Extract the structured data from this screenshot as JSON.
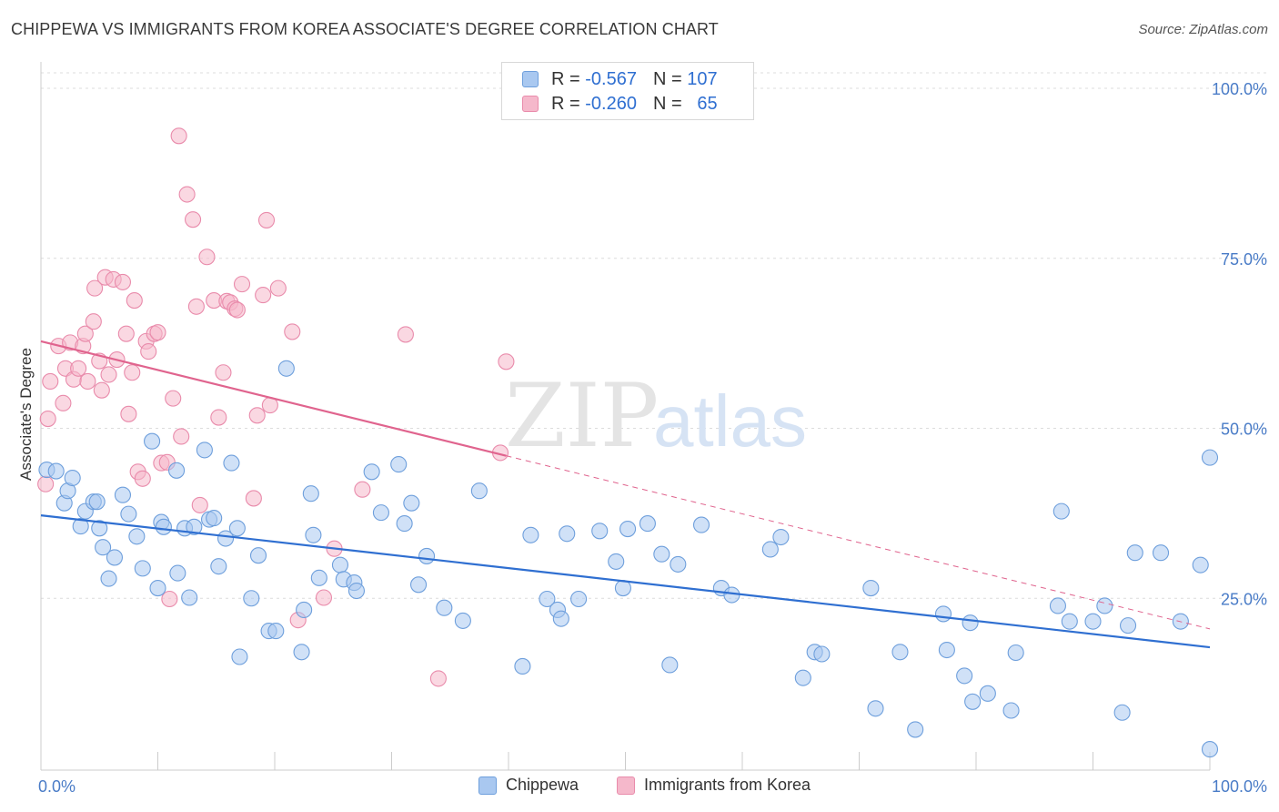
{
  "header": {
    "title": "CHIPPEWA VS IMMIGRANTS FROM KOREA ASSOCIATE'S DEGREE CORRELATION CHART",
    "source": "Source: ZipAtlas.com"
  },
  "watermark": {
    "zip": "ZIP",
    "atlas": "atlas"
  },
  "legend_top": {
    "rows": [
      {
        "r_label": "R =",
        "r_value": "-0.567",
        "n_label": "N =",
        "n_value": "107",
        "color": "#a9c8f0"
      },
      {
        "r_label": "R =",
        "r_value": "-0.260",
        "n_label": "N =",
        "n_value": "65",
        "color": "#f5b8cb"
      }
    ]
  },
  "legend_bottom": {
    "items": [
      "Chippewa",
      "Immigrants from Korea"
    ]
  },
  "chart_data": {
    "type": "scatter",
    "title": "CHIPPEWA VS IMMIGRANTS FROM KOREA ASSOCIATE'S DEGREE CORRELATION CHART",
    "xlabel": "",
    "ylabel": "Associate's Degree",
    "xlim": [
      0,
      100
    ],
    "ylim": [
      0,
      100
    ],
    "x_tick_labels": [
      "0.0%",
      "100.0%"
    ],
    "y_tick_values": [
      25,
      50,
      75,
      100
    ],
    "y_tick_labels": [
      "25.0%",
      "50.0%",
      "75.0%",
      "100.0%"
    ],
    "grid": true,
    "legend_placement": "top-center",
    "colors": {
      "chippewa_fill": "#a9c8f0",
      "chippewa_stroke": "#6e9fdc",
      "chippewa_line": "#2f6fd1",
      "korea_fill": "#f5b8cb",
      "korea_stroke": "#e98bab",
      "korea_line": "#e0648e"
    },
    "series": [
      {
        "name": "Chippewa",
        "r": -0.567,
        "n": 107,
        "trend": {
          "x": [
            0,
            100
          ],
          "y": [
            37.2,
            17.8
          ]
        },
        "points": [
          [
            0.5,
            43.9
          ],
          [
            1.3,
            43.7
          ],
          [
            2.0,
            39.0
          ],
          [
            2.3,
            40.8
          ],
          [
            2.7,
            42.7
          ],
          [
            3.4,
            35.6
          ],
          [
            3.8,
            37.8
          ],
          [
            4.5,
            39.2
          ],
          [
            4.8,
            39.2
          ],
          [
            5.0,
            35.3
          ],
          [
            5.3,
            32.5
          ],
          [
            5.8,
            27.9
          ],
          [
            6.3,
            31.0
          ],
          [
            7.0,
            40.2
          ],
          [
            7.5,
            37.4
          ],
          [
            8.2,
            34.1
          ],
          [
            8.7,
            29.4
          ],
          [
            9.5,
            48.1
          ],
          [
            10.0,
            26.5
          ],
          [
            10.3,
            36.2
          ],
          [
            10.5,
            35.5
          ],
          [
            11.6,
            43.8
          ],
          [
            11.7,
            28.7
          ],
          [
            12.3,
            35.3
          ],
          [
            12.7,
            25.1
          ],
          [
            13.1,
            35.5
          ],
          [
            14.0,
            46.8
          ],
          [
            14.4,
            36.6
          ],
          [
            14.8,
            36.8
          ],
          [
            15.2,
            29.7
          ],
          [
            15.8,
            33.8
          ],
          [
            16.3,
            44.9
          ],
          [
            16.8,
            35.3
          ],
          [
            17.0,
            16.4
          ],
          [
            18.0,
            25.0
          ],
          [
            18.6,
            31.3
          ],
          [
            19.5,
            20.2
          ],
          [
            20.1,
            20.2
          ],
          [
            21.0,
            58.8
          ],
          [
            22.3,
            17.1
          ],
          [
            22.5,
            23.3
          ],
          [
            23.1,
            40.4
          ],
          [
            23.3,
            34.3
          ],
          [
            23.8,
            28.0
          ],
          [
            25.6,
            29.9
          ],
          [
            25.9,
            27.8
          ],
          [
            26.8,
            27.3
          ],
          [
            27.0,
            26.1
          ],
          [
            28.3,
            43.6
          ],
          [
            29.1,
            37.6
          ],
          [
            30.6,
            44.7
          ],
          [
            31.1,
            36.0
          ],
          [
            31.7,
            39.0
          ],
          [
            32.3,
            27.0
          ],
          [
            33.0,
            31.2
          ],
          [
            34.5,
            23.6
          ],
          [
            36.1,
            21.7
          ],
          [
            37.5,
            40.8
          ],
          [
            41.2,
            15.0
          ],
          [
            41.9,
            34.3
          ],
          [
            43.3,
            24.9
          ],
          [
            44.2,
            23.3
          ],
          [
            44.5,
            22.0
          ],
          [
            45.0,
            34.5
          ],
          [
            46.0,
            24.9
          ],
          [
            47.8,
            34.9
          ],
          [
            49.2,
            30.4
          ],
          [
            49.8,
            26.5
          ],
          [
            50.2,
            35.2
          ],
          [
            51.9,
            36.0
          ],
          [
            53.1,
            31.5
          ],
          [
            53.8,
            15.2
          ],
          [
            54.5,
            30.0
          ],
          [
            56.5,
            35.8
          ],
          [
            58.2,
            26.5
          ],
          [
            59.1,
            25.5
          ],
          [
            62.4,
            32.2
          ],
          [
            63.3,
            34.0
          ],
          [
            65.2,
            13.3
          ],
          [
            66.2,
            17.1
          ],
          [
            66.8,
            16.8
          ],
          [
            71.0,
            26.5
          ],
          [
            71.4,
            8.8
          ],
          [
            73.5,
            17.1
          ],
          [
            74.8,
            5.7
          ],
          [
            77.2,
            22.7
          ],
          [
            77.5,
            17.4
          ],
          [
            79.0,
            13.6
          ],
          [
            79.5,
            21.4
          ],
          [
            79.7,
            9.8
          ],
          [
            81.0,
            11.0
          ],
          [
            83.0,
            8.5
          ],
          [
            83.4,
            17.0
          ],
          [
            87.0,
            23.9
          ],
          [
            87.3,
            37.8
          ],
          [
            88.0,
            21.6
          ],
          [
            90.0,
            21.6
          ],
          [
            91.0,
            23.9
          ],
          [
            92.5,
            8.2
          ],
          [
            93.0,
            21.0
          ],
          [
            93.6,
            31.7
          ],
          [
            95.8,
            31.7
          ],
          [
            97.5,
            21.6
          ],
          [
            99.2,
            29.9
          ],
          [
            100.0,
            45.7
          ],
          [
            100.0,
            2.8
          ]
        ]
      },
      {
        "name": "Immigrants from Korea",
        "r": -0.26,
        "n": 65,
        "trend": {
          "x": [
            0,
            100
          ],
          "y": [
            62.8,
            20.5
          ]
        },
        "trend_solid_until_x": 39.8,
        "points": [
          [
            0.4,
            41.8
          ],
          [
            0.6,
            51.4
          ],
          [
            0.8,
            56.9
          ],
          [
            1.5,
            62.1
          ],
          [
            1.9,
            53.7
          ],
          [
            2.1,
            58.8
          ],
          [
            2.5,
            62.6
          ],
          [
            2.8,
            57.2
          ],
          [
            3.2,
            58.8
          ],
          [
            3.6,
            62.1
          ],
          [
            3.8,
            63.9
          ],
          [
            4.0,
            56.9
          ],
          [
            4.5,
            65.7
          ],
          [
            4.6,
            70.6
          ],
          [
            5.0,
            59.9
          ],
          [
            5.2,
            55.6
          ],
          [
            5.5,
            72.2
          ],
          [
            5.8,
            57.9
          ],
          [
            6.2,
            71.9
          ],
          [
            6.5,
            60.1
          ],
          [
            7.0,
            71.5
          ],
          [
            7.3,
            63.9
          ],
          [
            7.5,
            52.1
          ],
          [
            7.8,
            58.2
          ],
          [
            8.0,
            68.8
          ],
          [
            8.3,
            43.6
          ],
          [
            8.7,
            42.6
          ],
          [
            9.0,
            62.8
          ],
          [
            9.2,
            61.3
          ],
          [
            9.7,
            63.9
          ],
          [
            10.0,
            64.1
          ],
          [
            10.3,
            44.9
          ],
          [
            10.8,
            45.0
          ],
          [
            11.0,
            24.9
          ],
          [
            11.3,
            54.4
          ],
          [
            11.8,
            93.0
          ],
          [
            12.0,
            48.8
          ],
          [
            12.5,
            84.4
          ],
          [
            13.0,
            80.7
          ],
          [
            13.3,
            67.9
          ],
          [
            13.6,
            38.7
          ],
          [
            14.2,
            75.2
          ],
          [
            14.8,
            68.8
          ],
          [
            15.2,
            51.6
          ],
          [
            15.6,
            58.2
          ],
          [
            15.9,
            68.7
          ],
          [
            16.2,
            68.5
          ],
          [
            16.6,
            67.6
          ],
          [
            16.8,
            67.4
          ],
          [
            17.2,
            71.2
          ],
          [
            18.2,
            39.7
          ],
          [
            18.5,
            51.9
          ],
          [
            19.0,
            69.6
          ],
          [
            19.3,
            80.6
          ],
          [
            19.6,
            53.4
          ],
          [
            20.3,
            70.6
          ],
          [
            21.5,
            64.2
          ],
          [
            22.0,
            21.8
          ],
          [
            24.2,
            25.1
          ],
          [
            25.1,
            32.3
          ],
          [
            27.5,
            41.0
          ],
          [
            31.2,
            63.8
          ],
          [
            34.0,
            13.2
          ],
          [
            39.3,
            46.4
          ],
          [
            39.8,
            59.8
          ]
        ]
      }
    ]
  }
}
